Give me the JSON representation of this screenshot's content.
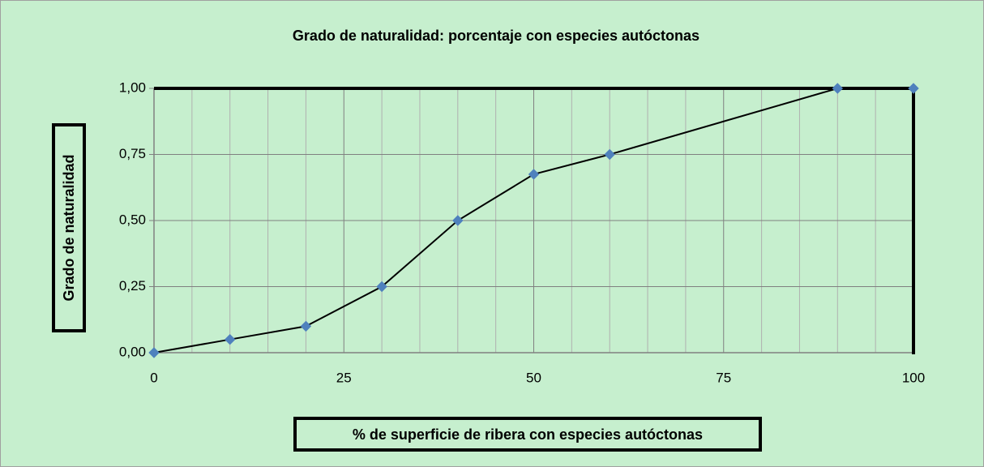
{
  "chart_data": {
    "type": "line",
    "title": "Grado de naturalidad: porcentaje con especies autóctonas",
    "x_label": "% de superficie de ribera con especies autóctonas",
    "y_label": "Grado de naturalidad",
    "x": [
      0,
      10,
      20,
      30,
      40,
      50,
      60,
      90,
      100
    ],
    "series": [
      {
        "name": "Grado de naturalidad",
        "color": "#4f81bd",
        "values": [
          0,
          0.05,
          0.1,
          0.25,
          0.5,
          0.675,
          0.75,
          1,
          1
        ]
      }
    ],
    "line_color": "#000000",
    "xlim": [
      0,
      100
    ],
    "xticks": [
      0,
      25,
      50,
      75,
      100
    ],
    "x_minor_ticks": [
      5,
      10,
      15,
      20,
      30,
      35,
      40,
      45,
      55,
      60,
      65,
      70,
      80,
      85,
      90,
      95
    ],
    "ylim": [
      0,
      1
    ],
    "yticks": [
      {
        "value": 0,
        "label": "0,00"
      },
      {
        "value": 0.25,
        "label": "0,25"
      },
      {
        "value": 0.5,
        "label": "0,50"
      },
      {
        "value": 0.75,
        "label": "0,75"
      },
      {
        "value": 1,
        "label": "1,00"
      }
    ],
    "grid": true,
    "background": "#c6efce"
  }
}
